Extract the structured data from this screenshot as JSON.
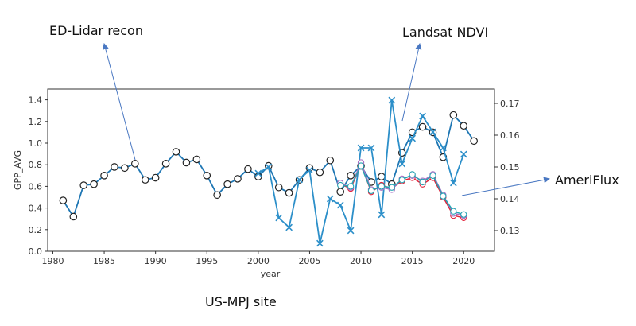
{
  "chart_data": {
    "type": "line",
    "xlabel": "year",
    "ylabel": "GPP_AVG",
    "xlim": [
      1979.5,
      2023
    ],
    "ylim": [
      0.0,
      1.5
    ],
    "y2lim": [
      0.1235,
      0.1745
    ],
    "x_ticks": [
      "1980",
      "1985",
      "1990",
      "1995",
      "2000",
      "2005",
      "2010",
      "2015",
      "2020"
    ],
    "y_ticks": [
      "0.0",
      "0.2",
      "0.4",
      "0.6",
      "0.8",
      "1.0",
      "1.2",
      "1.4"
    ],
    "y2_ticks": [
      "0.13",
      "0.14",
      "0.15",
      "0.16",
      "0.17"
    ],
    "grid": false,
    "series": [
      {
        "axis": "left",
        "color": "#1f77b4",
        "marker": "circle",
        "x": [
          1981,
          1982,
          1983,
          1984,
          1985,
          1986,
          1987,
          1988,
          1989,
          1990,
          1991,
          1992,
          1993,
          1994,
          1995,
          1996,
          1997,
          1998,
          1999,
          2000,
          2001,
          2002,
          2003,
          2004,
          2005,
          2006,
          2007,
          2008,
          2009,
          2010,
          2011,
          2012,
          2013,
          2014,
          2015,
          2016,
          2017,
          2018,
          2019,
          2020,
          2021
        ],
        "values": [
          0.47,
          0.32,
          0.61,
          0.62,
          0.7,
          0.78,
          0.77,
          0.81,
          0.66,
          0.68,
          0.81,
          0.92,
          0.82,
          0.85,
          0.7,
          0.52,
          0.62,
          0.67,
          0.76,
          0.69,
          0.79,
          0.59,
          0.54,
          0.66,
          0.77,
          0.73,
          0.84,
          0.55,
          0.7,
          0.79,
          0.64,
          0.69,
          0.62,
          0.91,
          1.1,
          1.15,
          1.1,
          0.87,
          1.26,
          1.16,
          1.02
        ]
      },
      {
        "axis": "right",
        "color": "#2c8fc9",
        "marker": "x",
        "x": [
          2000,
          2001,
          2002,
          2003,
          2004,
          2005,
          2006,
          2007,
          2008,
          2009,
          2010,
          2011,
          2012,
          2013,
          2014,
          2015,
          2016,
          2017,
          2018,
          2019,
          2020
        ],
        "values": [
          0.148,
          0.15,
          0.134,
          0.131,
          0.146,
          0.149,
          0.126,
          0.14,
          0.138,
          0.13,
          0.156,
          0.156,
          0.135,
          0.171,
          0.151,
          0.159,
          0.166,
          0.161,
          0.156,
          0.145,
          0.154
        ]
      },
      {
        "axis": "left",
        "color": "#e2233a",
        "marker": "circle",
        "x": [
          2008,
          2009,
          2010,
          2011,
          2012,
          2013,
          2014,
          2015,
          2016,
          2017,
          2018,
          2019,
          2020
        ],
        "values": [
          0.62,
          0.58,
          0.8,
          0.55,
          0.61,
          0.58,
          0.65,
          0.68,
          0.62,
          0.68,
          0.5,
          0.33,
          0.31
        ]
      },
      {
        "axis": "left",
        "color": "#a66fc4",
        "marker": "circle",
        "x": [
          2008,
          2009,
          2010,
          2011,
          2012,
          2013,
          2014,
          2015,
          2016,
          2017,
          2018,
          2019,
          2020
        ],
        "values": [
          0.63,
          0.59,
          0.82,
          0.57,
          0.59,
          0.57,
          0.67,
          0.7,
          0.65,
          0.71,
          0.52,
          0.35,
          0.33
        ]
      },
      {
        "axis": "left",
        "color": "#27a3b3",
        "marker": "circle",
        "x": [
          2008,
          2009,
          2010,
          2011,
          2012,
          2013,
          2014,
          2015,
          2016,
          2017,
          2018,
          2019,
          2020
        ],
        "values": [
          0.61,
          0.6,
          0.79,
          0.56,
          0.6,
          0.59,
          0.66,
          0.71,
          0.64,
          0.7,
          0.51,
          0.37,
          0.34
        ]
      }
    ]
  },
  "annotations": {
    "ed_lidar": "ED-Lidar recon",
    "landsat": "Landsat NDVI",
    "ameriflux": "AmeriFlux",
    "site": "US-MPJ site"
  },
  "colors": {
    "arrow": "#4a78c2",
    "axis": "#333333"
  }
}
